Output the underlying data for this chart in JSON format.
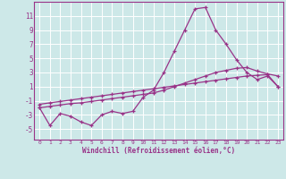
{
  "xlabel": "Windchill (Refroidissement éolien,°C)",
  "background_color": "#cde8e8",
  "line_color": "#993388",
  "grid_color": "#ffffff",
  "x_ticks": [
    0,
    1,
    2,
    3,
    4,
    5,
    6,
    7,
    8,
    9,
    10,
    11,
    12,
    13,
    14,
    15,
    16,
    17,
    18,
    19,
    20,
    21,
    22,
    23
  ],
  "y_ticks": [
    -5,
    -3,
    -1,
    1,
    3,
    5,
    7,
    9,
    11
  ],
  "ylim": [
    -6.5,
    13.0
  ],
  "xlim": [
    -0.5,
    23.5
  ],
  "line1_x": [
    0,
    1,
    2,
    3,
    4,
    5,
    6,
    7,
    8,
    9,
    10,
    11,
    12,
    13,
    14,
    15,
    16,
    17,
    18,
    19,
    20,
    21,
    22,
    23
  ],
  "line1_y": [
    -2,
    -4.5,
    -2.8,
    -3.2,
    -4.0,
    -4.5,
    -3.0,
    -2.5,
    -2.8,
    -2.5,
    -0.5,
    0.5,
    3.0,
    6.0,
    9.0,
    12.0,
    12.2,
    9.0,
    7.0,
    4.8,
    3.0,
    2.0,
    2.5,
    1.0
  ],
  "line2_x": [
    0,
    1,
    2,
    3,
    4,
    5,
    6,
    7,
    8,
    9,
    10,
    11,
    12,
    13,
    14,
    15,
    16,
    17,
    18,
    19,
    20,
    21,
    22,
    23
  ],
  "line2_y": [
    -2.0,
    -1.8,
    -1.6,
    -1.4,
    -1.3,
    -1.1,
    -0.9,
    -0.7,
    -0.5,
    -0.3,
    -0.1,
    0.1,
    0.5,
    1.0,
    1.5,
    2.0,
    2.5,
    3.0,
    3.3,
    3.6,
    3.7,
    3.2,
    2.8,
    2.5
  ],
  "line3_x": [
    0,
    1,
    2,
    3,
    4,
    5,
    6,
    7,
    8,
    9,
    10,
    11,
    12,
    13,
    14,
    15,
    16,
    17,
    18,
    19,
    20,
    21,
    22,
    23
  ],
  "line3_y": [
    -1.5,
    -1.3,
    -1.1,
    -0.9,
    -0.7,
    -0.5,
    -0.3,
    -0.1,
    0.1,
    0.3,
    0.5,
    0.7,
    0.9,
    1.1,
    1.3,
    1.5,
    1.7,
    1.9,
    2.1,
    2.3,
    2.5,
    2.6,
    2.7,
    1.0
  ]
}
